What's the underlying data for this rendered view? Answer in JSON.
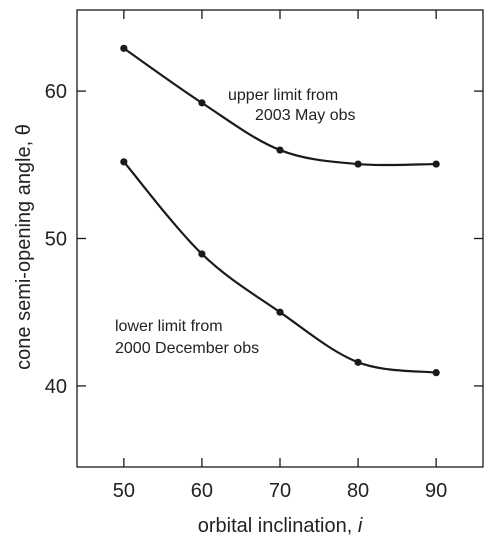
{
  "chart_data": {
    "type": "line",
    "title": "",
    "xlabel": "orbital inclination, ",
    "xlabel_var": "i",
    "ylabel": "cone semi-opening angle, θ",
    "xlim": [
      44,
      96
    ],
    "ylim": [
      34.5,
      65.5
    ],
    "xticks": [
      50,
      60,
      70,
      80,
      90
    ],
    "yticks": [
      40,
      50,
      60
    ],
    "grid": false,
    "legend": "none",
    "x": [
      50,
      60,
      70,
      80,
      90
    ],
    "series": [
      {
        "values": [
          62.9,
          59.2,
          56.0,
          55.05,
          55.05
        ]
      },
      {
        "values": [
          55.2,
          48.95,
          45.0,
          41.6,
          40.9
        ]
      }
    ],
    "annotations": [
      {
        "text": "upper limit from",
        "series": 0
      },
      {
        "text": "2003 May obs",
        "series": 0
      },
      {
        "text": "lower limit from",
        "series": 1
      },
      {
        "text": "2000 December obs",
        "series": 1
      }
    ],
    "colors": {
      "line": "#1a1a1a",
      "axis": "#1a1a1a",
      "text": "#222222"
    }
  }
}
